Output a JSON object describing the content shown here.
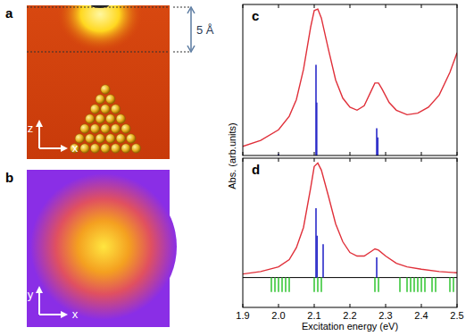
{
  "panels": [
    {
      "label": "a",
      "scale_label": "5 Å",
      "axes": [
        "z",
        "x"
      ]
    },
    {
      "label": "b",
      "axes": [
        "y",
        "x"
      ]
    }
  ],
  "chart_data": [
    {
      "type": "line",
      "title": "c",
      "y_label": "Abs. (arb.units)",
      "xlim": [
        1.9,
        2.5
      ],
      "ylim": [
        0,
        1
      ],
      "xticks": [
        1.9,
        {
          "value": 2,
          "label": "2.0"
        },
        2.1,
        2.2,
        2.3,
        2.4,
        2.5
      ],
      "tick_labels": false,
      "series": [
        {
          "type": "line",
          "color": "#e0303a",
          "x": [
            1.9,
            1.95,
            2.0,
            2.03,
            2.05,
            2.07,
            2.09,
            2.1,
            2.11,
            2.12,
            2.14,
            2.16,
            2.18,
            2.2,
            2.22,
            2.24,
            2.26,
            2.27,
            2.28,
            2.29,
            2.31,
            2.33,
            2.36,
            2.39,
            2.42,
            2.45,
            2.48,
            2.5
          ],
          "values": [
            0.06,
            0.1,
            0.17,
            0.26,
            0.37,
            0.57,
            0.85,
            0.96,
            0.97,
            0.91,
            0.7,
            0.5,
            0.38,
            0.32,
            0.3,
            0.33,
            0.43,
            0.48,
            0.48,
            0.44,
            0.35,
            0.3,
            0.27,
            0.28,
            0.32,
            0.4,
            0.55,
            0.68
          ]
        },
        {
          "type": "stick",
          "color": "#2a2ac8",
          "x": [
            2.0,
            2.105,
            2.107,
            2.275,
            2.278
          ],
          "values": [
            0.01,
            0.6,
            0.35,
            0.18,
            0.12
          ]
        }
      ]
    },
    {
      "type": "line",
      "title": "d",
      "x_label": "Excitation energy (eV)",
      "xlim": [
        1.9,
        2.5
      ],
      "ylim": [
        -0.25,
        1
      ],
      "xticks": [
        1.9,
        {
          "value": 2,
          "label": "2.0"
        },
        2.1,
        2.2,
        2.3,
        2.4,
        2.5
      ],
      "tick_labels": "x",
      "series": [
        {
          "type": "line",
          "color": "#e0303a",
          "x": [
            1.9,
            1.95,
            2.0,
            2.03,
            2.05,
            2.07,
            2.09,
            2.1,
            2.11,
            2.12,
            2.14,
            2.16,
            2.18,
            2.2,
            2.22,
            2.24,
            2.26,
            2.27,
            2.28,
            2.3,
            2.33,
            2.36,
            2.4,
            2.45,
            2.5
          ],
          "values": [
            0.03,
            0.05,
            0.09,
            0.15,
            0.25,
            0.42,
            0.75,
            0.93,
            0.96,
            0.9,
            0.68,
            0.45,
            0.3,
            0.21,
            0.18,
            0.18,
            0.22,
            0.24,
            0.23,
            0.18,
            0.12,
            0.09,
            0.07,
            0.05,
            0.04
          ]
        },
        {
          "type": "stick",
          "color": "#2a2ac8",
          "x": [
            2.105,
            2.108,
            2.125,
            2.275
          ],
          "values": [
            0.58,
            0.35,
            0.28,
            0.17
          ]
        },
        {
          "type": "stick",
          "color": "#3cc83c",
          "x": [
            1.98,
            1.99,
            2.0,
            2.01,
            2.02,
            2.03,
            2.1,
            2.11,
            2.12,
            2.27,
            2.28,
            2.34,
            2.36,
            2.37,
            2.38,
            2.39,
            2.4,
            2.41,
            2.43,
            2.44,
            2.48,
            2.49
          ],
          "values": [
            -0.12,
            -0.12,
            -0.12,
            -0.12,
            -0.12,
            -0.12,
            -0.12,
            -0.12,
            -0.12,
            -0.12,
            -0.12,
            -0.12,
            -0.12,
            -0.12,
            -0.12,
            -0.12,
            -0.12,
            -0.12,
            -0.12,
            -0.12,
            -0.12,
            -0.12
          ]
        }
      ]
    }
  ]
}
